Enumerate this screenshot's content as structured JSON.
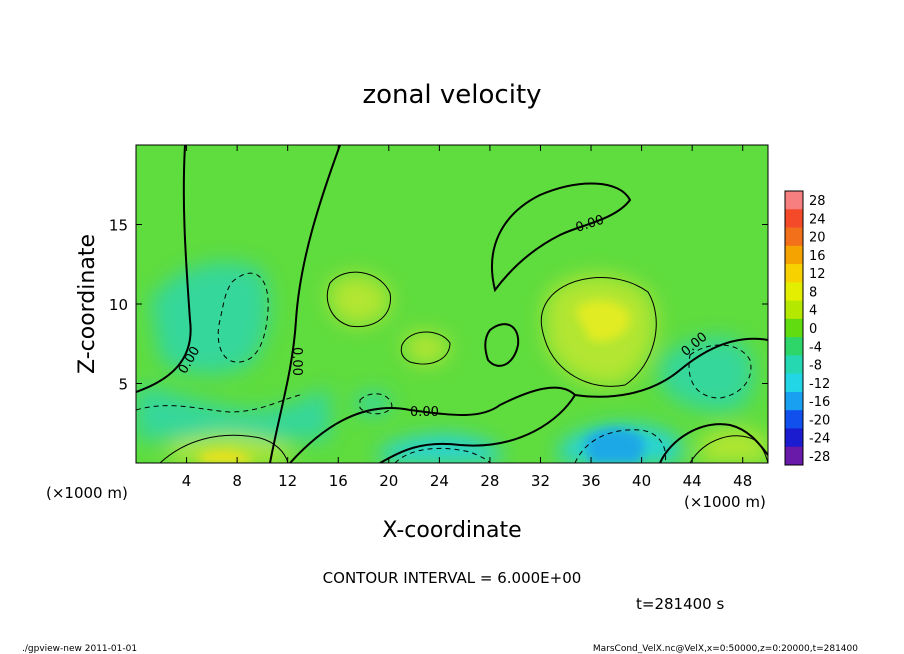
{
  "chart_data": {
    "type": "heatmap",
    "title": "zonal velocity",
    "xlabel": "X-coordinate",
    "ylabel": "Z-coordinate",
    "x_unit_label": "(×1000 m)",
    "x_unit_label_right": "(×1000 m)",
    "xlim": [
      0,
      50
    ],
    "ylim": [
      0,
      20
    ],
    "x_ticks": [
      4,
      8,
      12,
      16,
      20,
      24,
      28,
      32,
      36,
      40,
      44,
      48
    ],
    "y_ticks": [
      5,
      10,
      15
    ],
    "contour_interval_text": "CONTOUR INTERVAL = 6.000E+00",
    "time_text": "t=281400 s",
    "contour_labels": [
      "0.00",
      "0.00",
      "0.00",
      "0.00",
      "0.00"
    ],
    "colorbar": {
      "levels": [
        28,
        24,
        20,
        16,
        12,
        8,
        4,
        0,
        -4,
        -8,
        -12,
        -16,
        -20,
        -24,
        -28
      ],
      "colors": [
        "#f77f7f",
        "#f44a2a",
        "#f2701a",
        "#f5a300",
        "#f7d200",
        "#e4ee00",
        "#b4e800",
        "#60dc10",
        "#2ed66a",
        "#25d8b2",
        "#23d6e6",
        "#1aa0f0",
        "#1250ee",
        "#1b1bd0",
        "#6a1aa8"
      ]
    },
    "field_colors": {
      "background": "#5fdc3e",
      "positive": "#b2e632",
      "strong_positive": "#e2ec22",
      "negative": "#34d79a",
      "strong_negative": "#27d3d8",
      "peak_negative": "#1fa8e6",
      "peak_positive": "#f3e11e"
    }
  },
  "footer": {
    "left": "./gpview-new   2011-01-01",
    "right": "MarsCond_VelX.nc@VelX,x=0:50000,z=0:20000,t=281400"
  }
}
